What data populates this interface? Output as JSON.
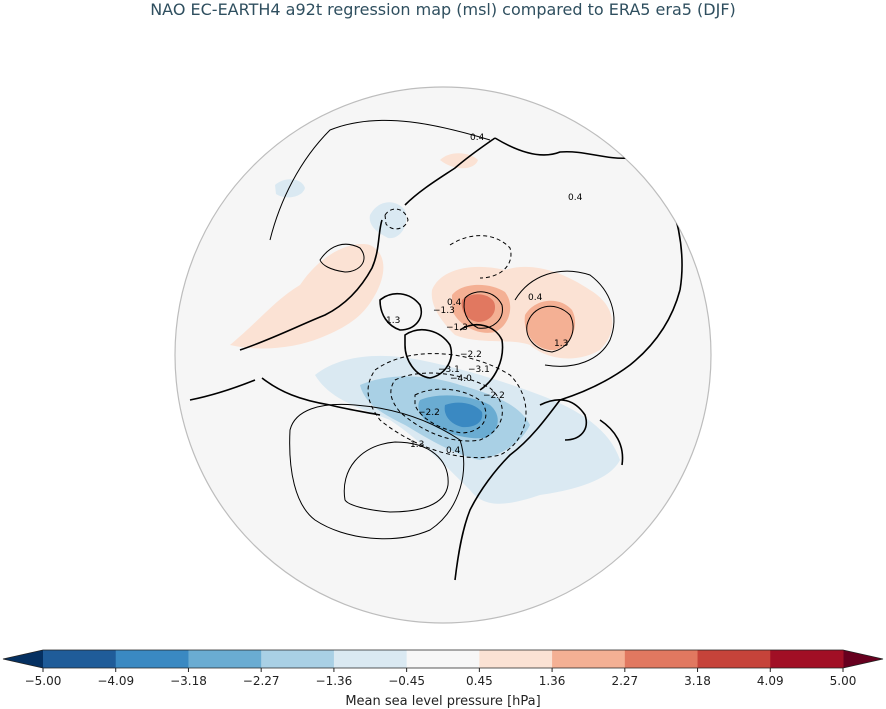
{
  "title": "NAO EC-EARTH4 a92t regression map (msl) compared to ERA5 era5 (DJF)",
  "colorbar": {
    "label": "Mean sea level pressure [hPa]",
    "ticks": [
      "−5.00",
      "−4.09",
      "−3.18",
      "−2.27",
      "−1.36",
      "−0.45",
      "0.45",
      "1.36",
      "2.27",
      "3.18",
      "4.09",
      "5.00"
    ],
    "colors": [
      "#1f5c99",
      "#3a89c2",
      "#6aacd2",
      "#a9d0e5",
      "#dae9f2",
      "#f7f7f7",
      "#fbe2d4",
      "#f4b094",
      "#e17860",
      "#c6433a",
      "#a10f25"
    ]
  },
  "contour_labels": [
    "0.4",
    "0.4",
    "0.4",
    "0.4",
    "1.3",
    "1.3",
    "−1.3",
    "−1.3",
    "−2.2",
    "−2.2",
    "−2.2",
    "−3.1",
    "−3.1",
    "−4.0",
    "0.4",
    "1.3"
  ]
}
